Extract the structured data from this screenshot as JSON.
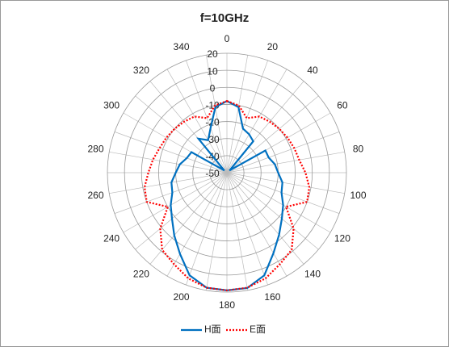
{
  "chart_data": {
    "type": "radar",
    "title": "f=10GHz",
    "categories": [
      "0",
      null,
      "20",
      null,
      "40",
      null,
      "60",
      null,
      "80",
      null,
      "100",
      null,
      "120",
      null,
      "140",
      null,
      "160",
      null,
      "180",
      null,
      "200",
      null,
      "220",
      null,
      "240",
      null,
      "260",
      null,
      "280",
      null,
      "300",
      null,
      "320",
      null,
      "340",
      null
    ],
    "series": [
      {
        "name": "H面",
        "color": "#0070c0",
        "dash": "solid",
        "values": [
          -8,
          -11,
          -22.5,
          -24,
          -26,
          -48,
          -24,
          -24,
          -21.5,
          -20,
          -17,
          -16,
          -12,
          -8,
          -2.5,
          4.5,
          14,
          18.7,
          19,
          18.5,
          14,
          5,
          -2,
          -8,
          -12,
          -16,
          -17,
          -20,
          -22,
          -25,
          -26,
          -48,
          -24,
          -28,
          -22,
          -11
        ]
      },
      {
        "name": "E面",
        "color": "#ff0000",
        "dash": "dotted",
        "values": [
          -8,
          -10,
          -16,
          -12,
          -11,
          -10,
          -9,
          -8,
          -7,
          -4,
          -1,
          0,
          -10,
          1,
          9,
          12,
          16,
          18.5,
          19,
          18.5,
          16,
          12,
          9,
          1,
          -10,
          0,
          -1,
          -4,
          -6,
          -8,
          -9,
          -10,
          -11,
          -12,
          -16,
          -10
        ]
      }
    ],
    "rlim": [
      -50,
      20
    ],
    "rticks": [
      -50,
      -40,
      -30,
      -20,
      -10,
      0,
      10,
      20
    ],
    "grid": true,
    "legend": "bottom"
  }
}
